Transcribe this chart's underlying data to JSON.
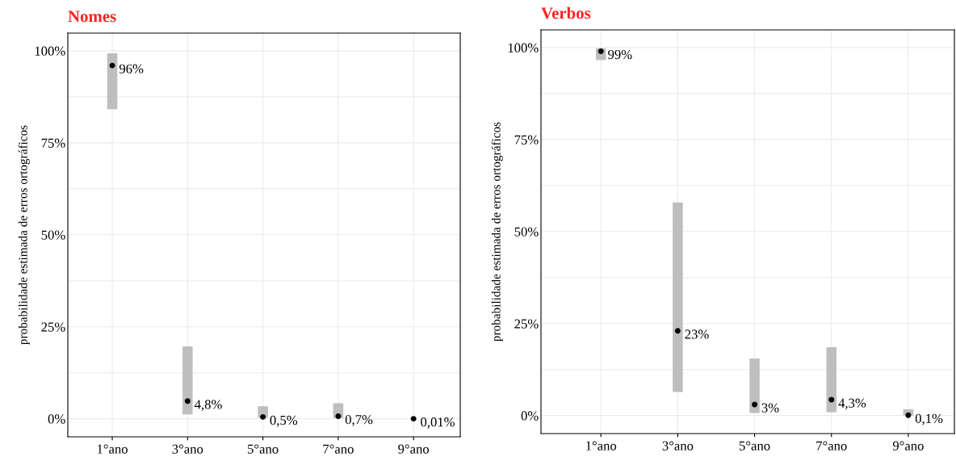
{
  "chart_data": [
    {
      "type": "scatter",
      "title": "Nomes",
      "ylabel": "probabilidade estimada de erros ortográficos",
      "categories": [
        "1°ano",
        "3°ano",
        "5°ano",
        "7°ano",
        "9°ano"
      ],
      "series": [
        {
          "color": "#000000",
          "values": [
            96,
            4.8,
            0.5,
            0.7,
            0.01
          ],
          "value_labels": [
            "96%",
            "4,8%",
            "0,5%",
            "0,7%",
            "0,01%"
          ],
          "errors": [
            [
              84.1,
              99.3
            ],
            [
              1.2,
              19.7
            ],
            [
              0.3,
              3.4
            ],
            [
              0.2,
              4.2
            ],
            null
          ]
        }
      ],
      "ylim": [
        -4.9,
        104.8
      ],
      "yticks": [
        {
          "value": 0,
          "label": "0%"
        },
        {
          "value": 12.5,
          "label": null
        },
        {
          "value": 25,
          "label": "25%"
        },
        {
          "value": 37.5,
          "label": null
        },
        {
          "value": 50,
          "label": "50%"
        },
        {
          "value": 62.5,
          "label": null
        },
        {
          "value": 75,
          "label": "75%"
        },
        {
          "value": 87.5,
          "label": null
        },
        {
          "value": 100,
          "label": "100%"
        }
      ],
      "grid": true,
      "marker": "circle"
    },
    {
      "type": "scatter",
      "title": "Verbos",
      "ylabel": "probabilidade estimada de erros ortográficos",
      "categories": [
        "1°ano",
        "3°ano",
        "5°ano",
        "7°ano",
        "9°ano"
      ],
      "series": [
        {
          "color": "#000000",
          "values": [
            99,
            23,
            3,
            4.3,
            0.1
          ],
          "value_labels": [
            "99%",
            "23%",
            "3%",
            "4,3%",
            "0,1%"
          ],
          "errors": [
            [
              96.6,
              99.8
            ],
            [
              6.4,
              57.9
            ],
            [
              0.7,
              15.5
            ],
            [
              0.9,
              18.6
            ],
            [
              0,
              1.7
            ]
          ]
        }
      ],
      "ylim": [
        -4.9,
        104.8
      ],
      "yticks": [
        {
          "value": 0,
          "label": "0%"
        },
        {
          "value": 12.5,
          "label": null
        },
        {
          "value": 25,
          "label": "25%"
        },
        {
          "value": 37.5,
          "label": null
        },
        {
          "value": 50,
          "label": "50%"
        },
        {
          "value": 62.5,
          "label": null
        },
        {
          "value": 75,
          "label": "75%"
        },
        {
          "value": 87.5,
          "label": null
        },
        {
          "value": 100,
          "label": "100%"
        }
      ],
      "grid": true,
      "marker": "circle"
    }
  ]
}
